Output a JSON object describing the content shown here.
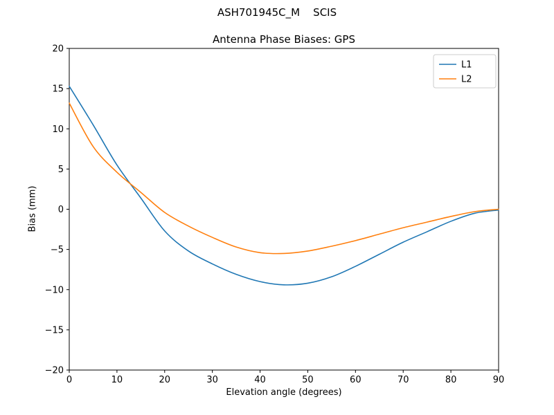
{
  "chart_data": {
    "type": "line",
    "suptitle": "ASH701945C_M    SCIS",
    "title": "Antenna Phase Biases: GPS",
    "xlabel": "Elevation angle (degrees)",
    "ylabel": "Bias (mm)",
    "xlim": [
      0,
      90
    ],
    "ylim": [
      -20,
      20
    ],
    "xticks": [
      0,
      10,
      20,
      30,
      40,
      50,
      60,
      70,
      80,
      90
    ],
    "yticks": [
      -20,
      -15,
      -10,
      -5,
      0,
      5,
      10,
      15,
      20
    ],
    "grid": false,
    "legend_position": "upper right",
    "x": [
      0,
      5,
      10,
      15,
      20,
      25,
      30,
      35,
      40,
      45,
      50,
      55,
      60,
      65,
      70,
      75,
      80,
      85,
      90
    ],
    "series": [
      {
        "name": "L1",
        "color": "#1f77b4",
        "values": [
          15.3,
          10.5,
          5.5,
          1.4,
          -2.7,
          -5.2,
          -6.8,
          -8.1,
          -9.0,
          -9.4,
          -9.2,
          -8.4,
          -7.1,
          -5.6,
          -4.1,
          -2.8,
          -1.5,
          -0.5,
          -0.1
        ]
      },
      {
        "name": "L2",
        "color": "#ff7f0e",
        "values": [
          13.2,
          7.8,
          4.6,
          2.1,
          -0.4,
          -2.1,
          -3.5,
          -4.7,
          -5.4,
          -5.5,
          -5.2,
          -4.6,
          -3.9,
          -3.1,
          -2.3,
          -1.6,
          -0.9,
          -0.3,
          0.0
        ]
      }
    ]
  }
}
